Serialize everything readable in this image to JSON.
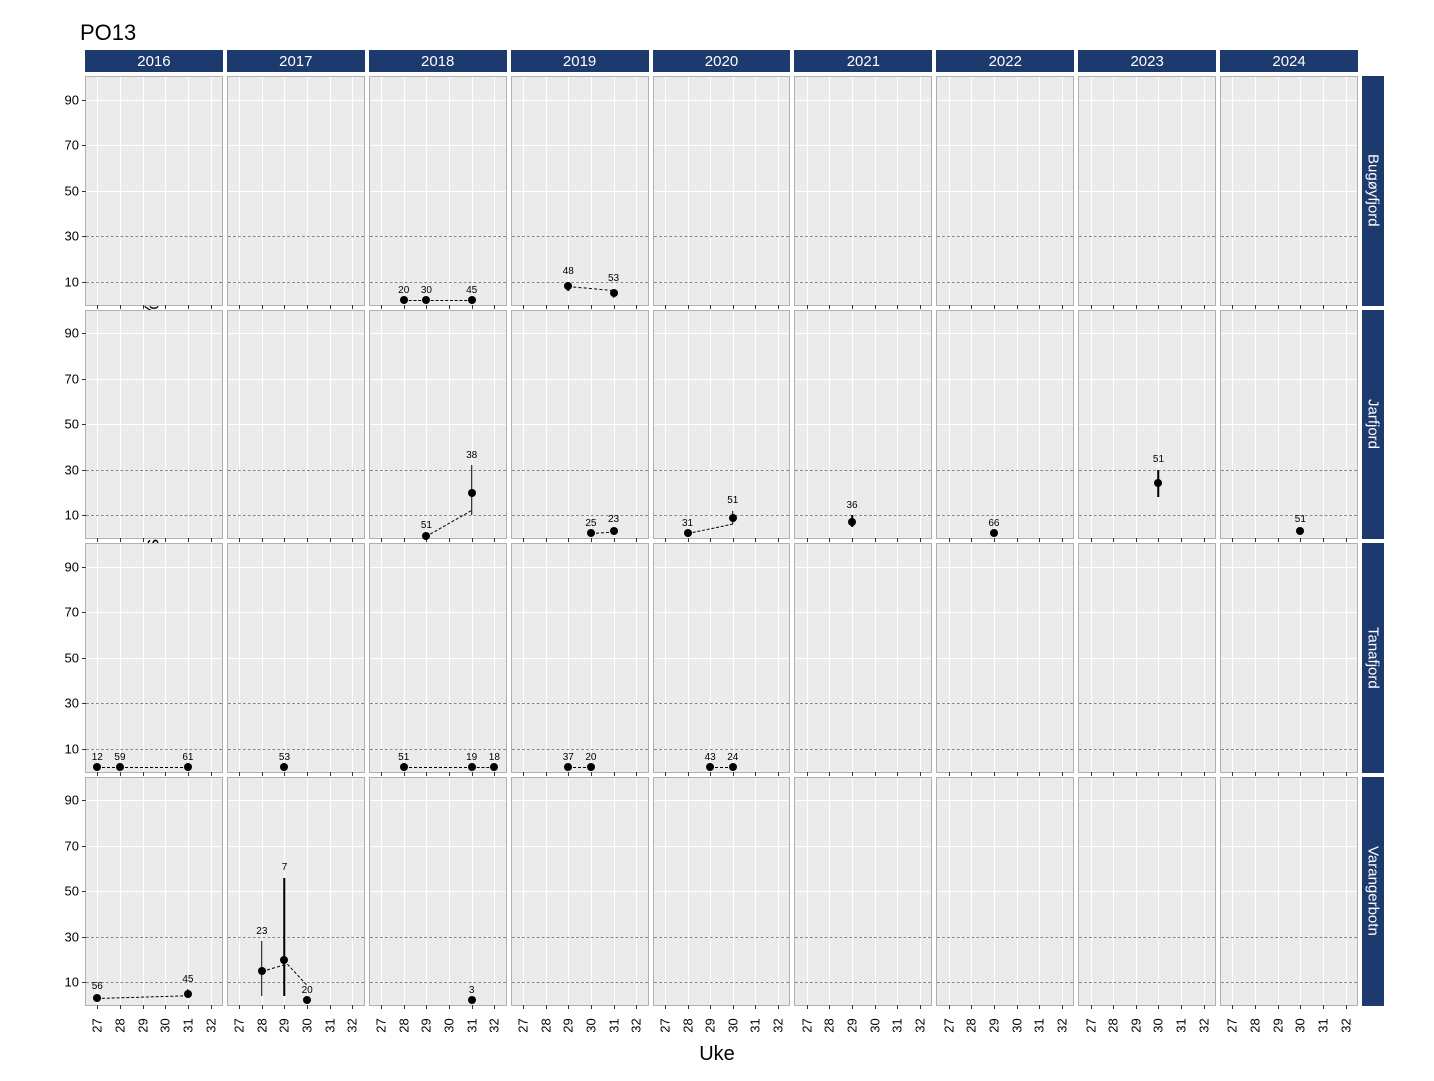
{
  "title": "PO13",
  "x_axis_label": "Uke",
  "y_axis_label": "Lakselusindusert dødelighet (%)",
  "colors": {
    "header_bg": "#1c3a6e",
    "header_text": "#ffffff",
    "panel_bg": "#ebebeb",
    "panel_border": "#b0b0b0",
    "gridline": "#ffffff",
    "refline": "#888888",
    "point": "#000000",
    "background": "#ffffff"
  },
  "layout": {
    "cols": 9,
    "rows": 4,
    "col_labels": [
      "2016",
      "2017",
      "2018",
      "2019",
      "2020",
      "2021",
      "2022",
      "2023",
      "2024"
    ],
    "row_labels": [
      "Bugøyfjord",
      "Jarfjord",
      "Tanafjord",
      "Varangerbotn"
    ]
  },
  "axes": {
    "x_ticks": [
      27,
      28,
      29,
      30,
      31,
      32
    ],
    "x_min": 26.5,
    "x_max": 32.5,
    "y_ticks": [
      10,
      30,
      50,
      70,
      90
    ],
    "y_min": 0,
    "y_max": 100,
    "reference_lines": [
      10,
      30
    ]
  },
  "typography": {
    "title_fontsize": 22,
    "axis_label_fontsize": 20,
    "tick_fontsize": 13,
    "header_fontsize": 15,
    "point_label_fontsize": 10
  },
  "data": {
    "Bugøyfjord": {
      "2018": [
        {
          "x": 28,
          "y": 2,
          "label": "20",
          "err_lo": 2,
          "err_hi": 2
        },
        {
          "x": 29,
          "y": 2,
          "label": "30",
          "err_lo": 2,
          "err_hi": 2
        },
        {
          "x": 31,
          "y": 2,
          "label": "45",
          "err_lo": 2,
          "err_hi": 2
        }
      ],
      "2019": [
        {
          "x": 29,
          "y": 8,
          "label": "48",
          "err_lo": 6,
          "err_hi": 10
        },
        {
          "x": 31,
          "y": 5,
          "label": "53",
          "err_lo": 3,
          "err_hi": 7
        }
      ]
    },
    "Jarfjord": {
      "2018": [
        {
          "x": 29,
          "y": 1,
          "label": "51",
          "err_lo": 1,
          "err_hi": 1
        },
        {
          "x": 31,
          "y": 20,
          "label": "38",
          "err_lo": 10,
          "err_hi": 32
        }
      ],
      "2019": [
        {
          "x": 30,
          "y": 2,
          "label": "25",
          "err_lo": 2,
          "err_hi": 2
        },
        {
          "x": 31,
          "y": 3,
          "label": "23",
          "err_lo": 2,
          "err_hi": 4
        }
      ],
      "2020": [
        {
          "x": 28,
          "y": 2,
          "label": "31",
          "err_lo": 2,
          "err_hi": 2
        },
        {
          "x": 30,
          "y": 9,
          "label": "51",
          "err_lo": 6,
          "err_hi": 12
        }
      ],
      "2021": [
        {
          "x": 29,
          "y": 7,
          "label": "36",
          "err_lo": 5,
          "err_hi": 10
        }
      ],
      "2022": [
        {
          "x": 29,
          "y": 2,
          "label": "66",
          "err_lo": 2,
          "err_hi": 2
        }
      ],
      "2023": [
        {
          "x": 30,
          "y": 24,
          "label": "51",
          "err_lo": 18,
          "err_hi": 30
        }
      ],
      "2024": [
        {
          "x": 30,
          "y": 3,
          "label": "51",
          "err_lo": 2,
          "err_hi": 4
        }
      ]
    },
    "Tanafjord": {
      "2016": [
        {
          "x": 27,
          "y": 2,
          "label": "12",
          "err_lo": 2,
          "err_hi": 2
        },
        {
          "x": 28,
          "y": 2,
          "label": "59",
          "err_lo": 2,
          "err_hi": 2
        },
        {
          "x": 31,
          "y": 2,
          "label": "61",
          "err_lo": 2,
          "err_hi": 2
        }
      ],
      "2017": [
        {
          "x": 29,
          "y": 2,
          "label": "53",
          "err_lo": 2,
          "err_hi": 2
        }
      ],
      "2018": [
        {
          "x": 28,
          "y": 2,
          "label": "51",
          "err_lo": 2,
          "err_hi": 2
        },
        {
          "x": 31,
          "y": 2,
          "label": "19",
          "err_lo": 2,
          "err_hi": 2
        },
        {
          "x": 32,
          "y": 2,
          "label": "18",
          "err_lo": 2,
          "err_hi": 2
        }
      ],
      "2019": [
        {
          "x": 29,
          "y": 2,
          "label": "37",
          "err_lo": 2,
          "err_hi": 2
        },
        {
          "x": 30,
          "y": 2,
          "label": "20",
          "err_lo": 2,
          "err_hi": 2
        }
      ],
      "2020": [
        {
          "x": 29,
          "y": 2,
          "label": "43",
          "err_lo": 2,
          "err_hi": 2
        },
        {
          "x": 30,
          "y": 2,
          "label": "24",
          "err_lo": 2,
          "err_hi": 2
        }
      ]
    },
    "Varangerbotn": {
      "2016": [
        {
          "x": 27,
          "y": 3,
          "label": "56",
          "err_lo": 2,
          "err_hi": 4
        },
        {
          "x": 31,
          "y": 5,
          "label": "45",
          "err_lo": 3,
          "err_hi": 7
        }
      ],
      "2017": [
        {
          "x": 28,
          "y": 15,
          "label": "23",
          "err_lo": 4,
          "err_hi": 28
        },
        {
          "x": 29,
          "y": 20,
          "label": "7",
          "err_lo": 4,
          "err_hi": 56
        },
        {
          "x": 30,
          "y": 2,
          "label": "20",
          "err_lo": 2,
          "err_hi": 2
        }
      ],
      "2018": [
        {
          "x": 31,
          "y": 2,
          "label": "3",
          "err_lo": 2,
          "err_hi": 2
        }
      ]
    }
  }
}
